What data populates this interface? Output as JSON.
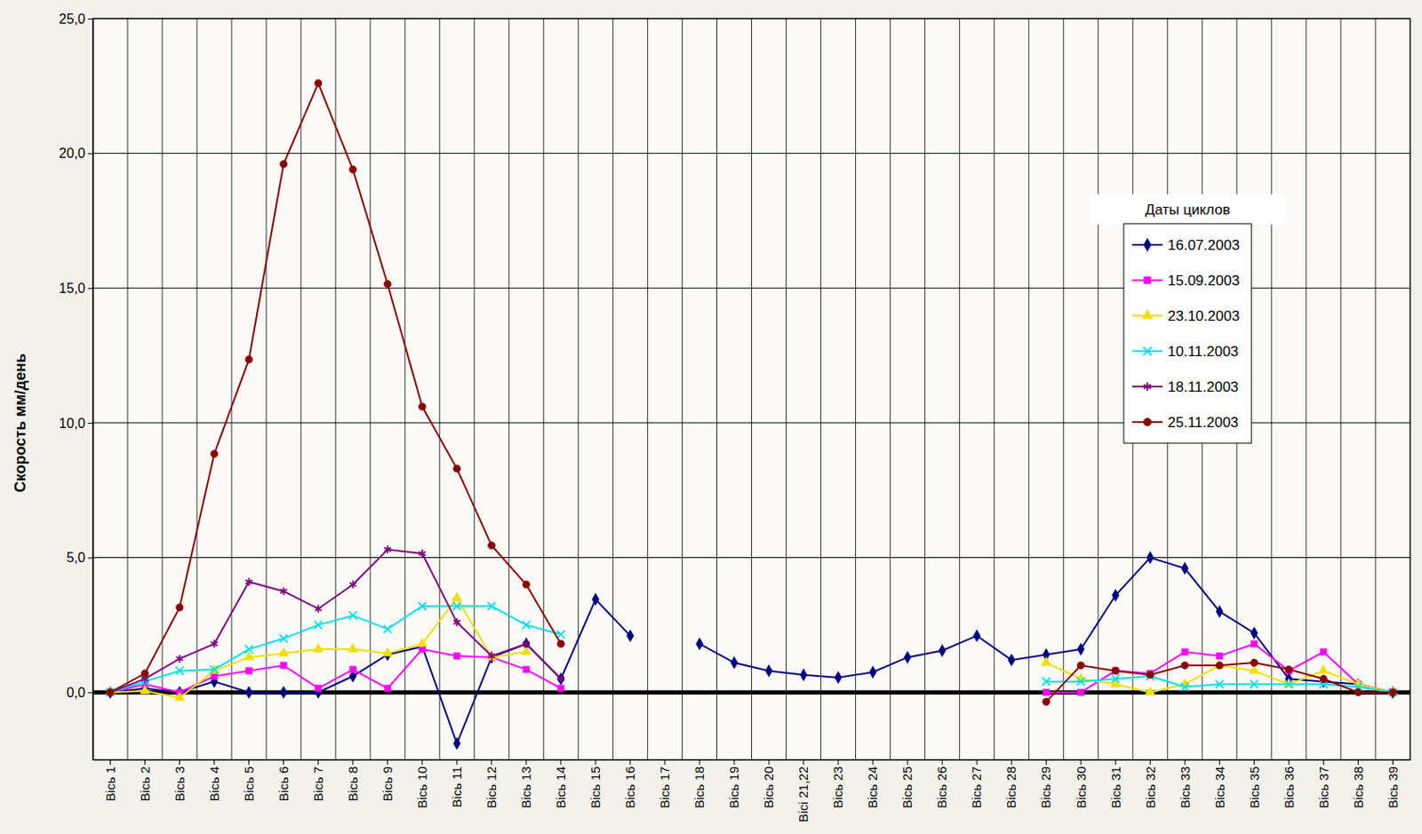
{
  "chart_data": {
    "type": "line",
    "y_label": "Скорость мм/день",
    "legend_title": "Даты циклов",
    "legend": "right",
    "grid": true,
    "categories": [
      "Вісь 1",
      "Вісь 2",
      "Вісь 3",
      "Вісь 4",
      "Вісь 5",
      "Вісь 6",
      "Вісь 7",
      "Вісь 8",
      "Вісь 9",
      "Вісь 10",
      "Вісь 11",
      "Вісь 12",
      "Вісь 13",
      "Вісь 14",
      "Вісь 15",
      "Вісь 16",
      "Вісь 17",
      "Вісь 18",
      "Вісь 19",
      "Вісь 20",
      "Вісі 21,22",
      "Вісь 23",
      "Вісь 24",
      "Вісь 25",
      "Вісь 26",
      "Вісь 27",
      "Вісь 28",
      "Вісь 29",
      "Вісь 30",
      "Вісь 31",
      "Вісь 32",
      "Вісь 33",
      "Вісь 34",
      "Вісь 35",
      "Вісь 36",
      "Вісь 37",
      "Вісь 38",
      "Вісь 39"
    ],
    "ylim": [
      -2.5,
      25
    ],
    "yticks": [
      {
        "value": 0,
        "label": "0,0"
      },
      {
        "value": 5,
        "label": "5,0"
      },
      {
        "value": 10,
        "label": "10,0"
      },
      {
        "value": 15,
        "label": "15,0"
      },
      {
        "value": 20,
        "label": "20,0"
      },
      {
        "value": 25,
        "label": "25,0"
      }
    ],
    "series": [
      {
        "name": "16.07.2003",
        "color": "#000080",
        "marker": "diamond",
        "values": [
          0,
          0.15,
          0,
          0.4,
          0,
          0,
          0,
          0.6,
          1.4,
          1.7,
          -1.9,
          1.3,
          1.8,
          0.5,
          3.45,
          2.1,
          null,
          1.8,
          1.1,
          0.8,
          0.65,
          0.55,
          0.75,
          1.3,
          1.55,
          2.1,
          1.2,
          1.4,
          1.6,
          3.6,
          5.0,
          4.6,
          3.0,
          2.2,
          0.5,
          0.4,
          0.3,
          0
        ]
      },
      {
        "name": "15.09.2003",
        "color": "#ff00ff",
        "marker": "square",
        "values": [
          0,
          0.3,
          0,
          0.6,
          0.8,
          1.0,
          0.15,
          0.85,
          0.15,
          1.6,
          1.35,
          1.3,
          0.85,
          0.15,
          null,
          null,
          null,
          null,
          null,
          null,
          null,
          null,
          null,
          null,
          null,
          null,
          null,
          0,
          0,
          0.8,
          0.7,
          1.5,
          1.35,
          1.8,
          0.8,
          1.5,
          0.3,
          0
        ]
      },
      {
        "name": "23.10.2003",
        "color": "#f0e000",
        "marker": "triangle",
        "values": [
          0,
          0.05,
          -0.2,
          0.8,
          1.3,
          1.45,
          1.6,
          1.6,
          1.45,
          1.8,
          3.5,
          1.3,
          1.5,
          null,
          null,
          null,
          null,
          null,
          null,
          null,
          null,
          null,
          null,
          null,
          null,
          null,
          null,
          1.1,
          0.5,
          0.3,
          0,
          0.3,
          1.0,
          0.8,
          0.3,
          0.8,
          0.3,
          0
        ]
      },
      {
        "name": "10.11.2003",
        "color": "#00e0ee",
        "marker": "x",
        "values": [
          0,
          0.4,
          0.8,
          0.85,
          1.6,
          2.0,
          2.5,
          2.85,
          2.35,
          3.2,
          3.2,
          3.2,
          2.5,
          2.15,
          null,
          null,
          null,
          null,
          null,
          null,
          null,
          null,
          null,
          null,
          null,
          null,
          null,
          0.4,
          0.4,
          0.5,
          0.6,
          0.2,
          0.3,
          0.3,
          0.3,
          0.3,
          0.2,
          0
        ]
      },
      {
        "name": "18.11.2003",
        "color": "#800080",
        "marker": "asterisk",
        "values": [
          0,
          0.5,
          1.25,
          1.8,
          4.1,
          3.75,
          3.1,
          4.0,
          5.3,
          5.15,
          2.6,
          1.35,
          1.8,
          0.5,
          null,
          null,
          null,
          null,
          null,
          null,
          null,
          null,
          null,
          null,
          null,
          null,
          null,
          null,
          null,
          null,
          null,
          null,
          null,
          null,
          null,
          null,
          null,
          null
        ]
      },
      {
        "name": "25.11.2003",
        "color": "#8b0000",
        "marker": "circle",
        "values": [
          0,
          0.7,
          3.15,
          8.85,
          12.35,
          19.6,
          22.6,
          19.4,
          15.15,
          10.6,
          8.3,
          5.45,
          4.0,
          1.8,
          null,
          null,
          null,
          null,
          null,
          null,
          null,
          null,
          null,
          null,
          null,
          null,
          null,
          -0.35,
          1.0,
          0.8,
          0.65,
          1.0,
          1.0,
          1.1,
          0.85,
          0.5,
          0,
          0
        ]
      }
    ]
  }
}
